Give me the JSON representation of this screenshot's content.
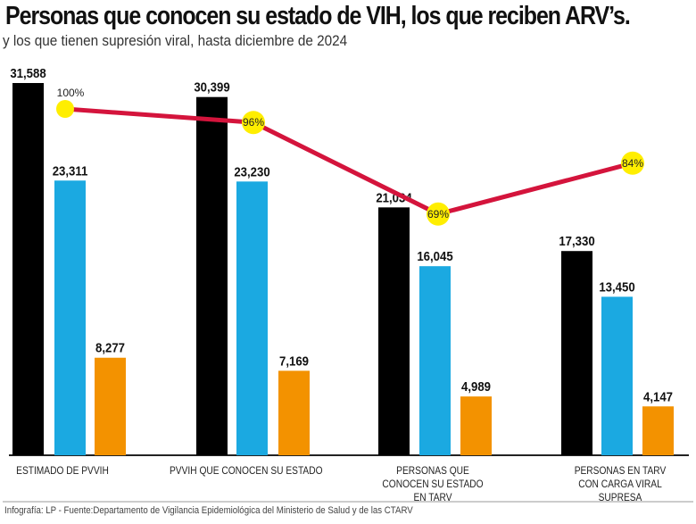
{
  "chart_data": {
    "type": "bar",
    "title": "Personas que conocen su estado de VIH, los que reciben ARV’s.",
    "subtitle": "y los que tienen supresión viral, hasta diciembre de 2024",
    "categories": [
      "ESTIMADO DE PVVIH",
      "PVVIH QUE CONOCEN SU ESTADO",
      "PERSONAS QUE CONOCEN SU ESTADO  EN TARV",
      "PERSONAS EN TARV CON CARGA VIRAL  SUPRESA"
    ],
    "series": [
      {
        "values": [
          31588,
          30399,
          21034,
          17330
        ],
        "labels": [
          "31,588",
          "30,399",
          "21,034",
          "17,330"
        ],
        "color": "#000000"
      },
      {
        "values": [
          23311,
          23230,
          16045,
          13450
        ],
        "labels": [
          "23,311",
          "23,230",
          "16,045",
          "13,450"
        ],
        "color": "#1ba9e1"
      },
      {
        "values": [
          8277,
          7169,
          4989,
          4147
        ],
        "labels": [
          "8,277",
          "7,169",
          "4,989",
          "4,147"
        ],
        "color": "#f39200"
      }
    ],
    "line": {
      "type": "line",
      "values": [
        100,
        96,
        69,
        84
      ],
      "labels": [
        "100%",
        "96%",
        "69%",
        "84%"
      ],
      "color": "#d4143c",
      "marker_color": "#ffee00"
    },
    "grid": false,
    "legend": "none"
  },
  "footer": "Infografía: LP - Fuente:Departamento de Vigilancia Epidemiológica del Ministerio de Salud y de las CTARV"
}
